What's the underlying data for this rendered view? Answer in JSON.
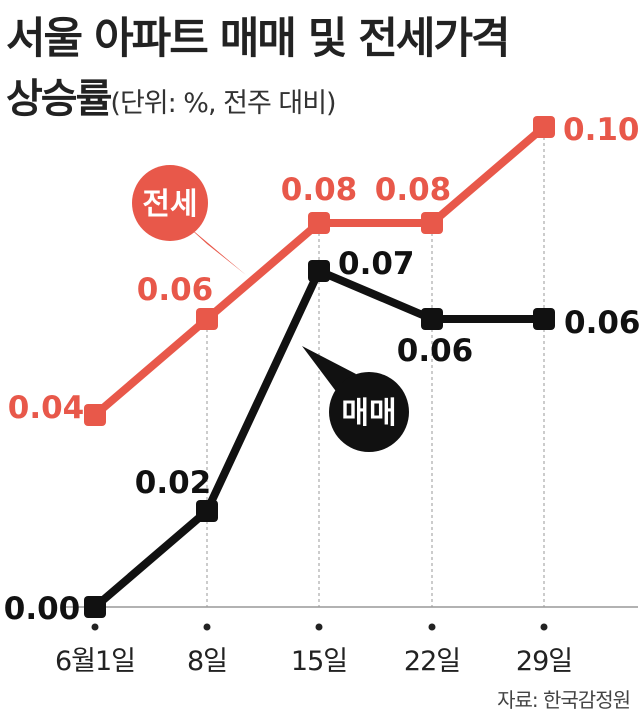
{
  "header": {
    "title_line1": "서울 아파트 매매 및 전세가격",
    "title_line2": "상승률",
    "unit": "(단위: %, 전주 대비)"
  },
  "source": "자료: 한국감정원",
  "colors": {
    "jeonse": "#e8584a",
    "sale": "#111111",
    "axis": "#999999",
    "grid": "#aaaaaa"
  },
  "chart_data": {
    "type": "line",
    "categories": [
      "6월1일",
      "8일",
      "15일",
      "22일",
      "29일"
    ],
    "ylim": [
      0,
      0.11
    ],
    "grid": "vertical dashed",
    "series": [
      {
        "name": "전세",
        "values": [
          0.04,
          0.06,
          0.08,
          0.08,
          0.1
        ],
        "labels": [
          "0.04",
          "0.06",
          "0.08",
          "0.08",
          "0.10"
        ],
        "color": "#e8584a"
      },
      {
        "name": "매매",
        "values": [
          0.0,
          0.02,
          0.07,
          0.06,
          0.06
        ],
        "labels": [
          "0.00",
          "0.02",
          "0.07",
          "0.06",
          "0.06"
        ],
        "color": "#111111"
      }
    ]
  }
}
